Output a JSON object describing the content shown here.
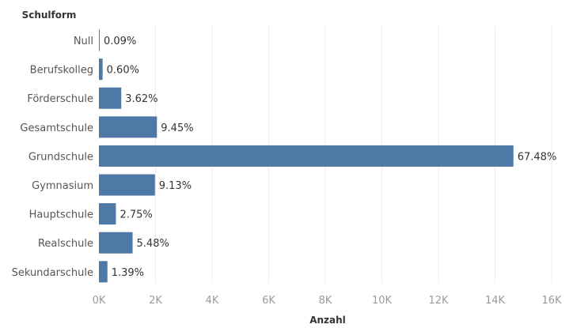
{
  "chart_data": {
    "type": "bar",
    "orientation": "horizontal",
    "row_header": "Schulform",
    "xlabel": "Anzahl",
    "xlim": [
      0,
      16000
    ],
    "x_ticks": [
      {
        "value": 0,
        "label": "0K"
      },
      {
        "value": 2000,
        "label": "2K"
      },
      {
        "value": 4000,
        "label": "4K"
      },
      {
        "value": 6000,
        "label": "6K"
      },
      {
        "value": 8000,
        "label": "8K"
      },
      {
        "value": 10000,
        "label": "10K"
      },
      {
        "value": 12000,
        "label": "12K"
      },
      {
        "value": 14000,
        "label": "14K"
      },
      {
        "value": 16000,
        "label": "16K"
      }
    ],
    "grid": true,
    "categories": [
      "Null",
      "Berufskolleg",
      "Förderschule",
      "Gesamtschule",
      "Grundschule",
      "Gymnasium",
      "Hauptschule",
      "Realschule",
      "Sekundarschule"
    ],
    "values": [
      20,
      130,
      790,
      2050,
      14650,
      1980,
      600,
      1190,
      300
    ],
    "data_labels": [
      "0.09%",
      "0.60%",
      "3.62%",
      "9.45%",
      "67.48%",
      "9.13%",
      "2.75%",
      "5.48%",
      "1.39%"
    ],
    "color": "#4e79a7"
  }
}
